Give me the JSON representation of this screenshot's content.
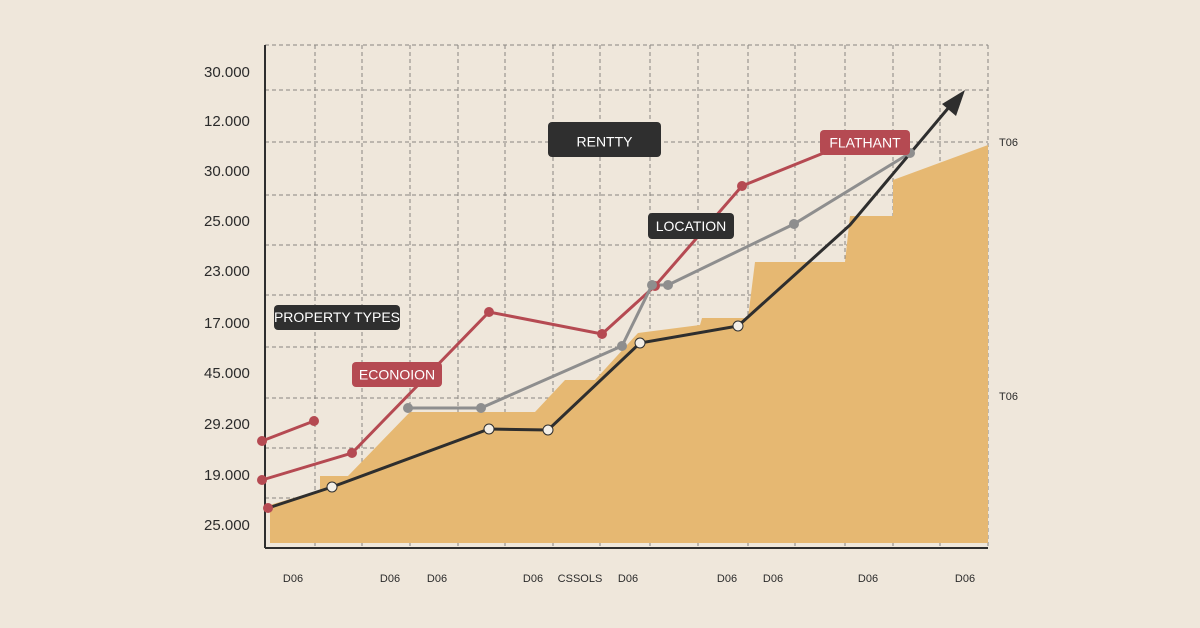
{
  "y_axis_labels": [
    "30.000",
    "12.000",
    "30.000",
    "25.000",
    "23.000",
    "17.000",
    "45.000",
    "29.200",
    "19.000",
    "25.000"
  ],
  "x_axis_labels": [
    "D06",
    "D06",
    "D06",
    "D06",
    "CSSOLS",
    "D06",
    "D06",
    "D06",
    "D06",
    "D06"
  ],
  "right_labels": [
    "T06",
    "T06"
  ],
  "callouts": {
    "rentty": "RENTTY",
    "location": "LOCATION",
    "property_types": "PROPERTY TYPES",
    "economy": "ECONOION",
    "flat": "FLATHANT"
  }
}
